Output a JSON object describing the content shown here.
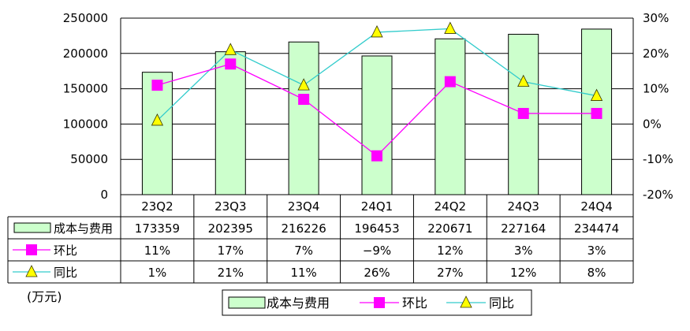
{
  "chart_data": {
    "type": "bar",
    "categories": [
      "23Q2",
      "23Q3",
      "23Q4",
      "24Q1",
      "24Q2",
      "24Q3",
      "24Q4"
    ],
    "series": [
      {
        "name": "成本与费用",
        "type": "bar",
        "axis": "left",
        "color": "#ccffcc",
        "edge": "#000000",
        "values": [
          173359,
          202395,
          216226,
          196453,
          220671,
          227164,
          234474
        ],
        "table_values": [
          "173359",
          "202395",
          "216226",
          "196453",
          "220671",
          "227164",
          "234474"
        ]
      },
      {
        "name": "环比",
        "type": "line",
        "axis": "right",
        "color": "#ff00ff",
        "marker": "square",
        "values": [
          11,
          17,
          7,
          -9,
          12,
          3,
          3
        ],
        "table_values": [
          "11%",
          "17%",
          "7%",
          "−9%",
          "12%",
          "3%",
          "3%"
        ]
      },
      {
        "name": "同比",
        "type": "line",
        "axis": "right",
        "color": "#33cccc",
        "marker": "triangle",
        "marker_color": "#ffff00",
        "values": [
          1,
          21,
          11,
          26,
          27,
          12,
          8
        ],
        "table_values": [
          "1%",
          "21%",
          "11%",
          "26%",
          "27%",
          "12%",
          "8%"
        ]
      }
    ],
    "left_axis": {
      "min": 0,
      "max": 250000,
      "ticks": [
        0,
        50000,
        100000,
        150000,
        200000,
        250000
      ]
    },
    "right_axis": {
      "min": -20,
      "max": 30,
      "ticks": [
        "-20%",
        "-10%",
        "0%",
        "10%",
        "20%",
        "30%"
      ],
      "tick_values": [
        -20,
        -10,
        0,
        10,
        20,
        30
      ]
    },
    "unit_label": "(万元)",
    "legend_items": [
      "成本与费用",
      "环比",
      "同比"
    ],
    "legend_placement": "bottom",
    "data_table": true,
    "grid": "horizontal"
  }
}
